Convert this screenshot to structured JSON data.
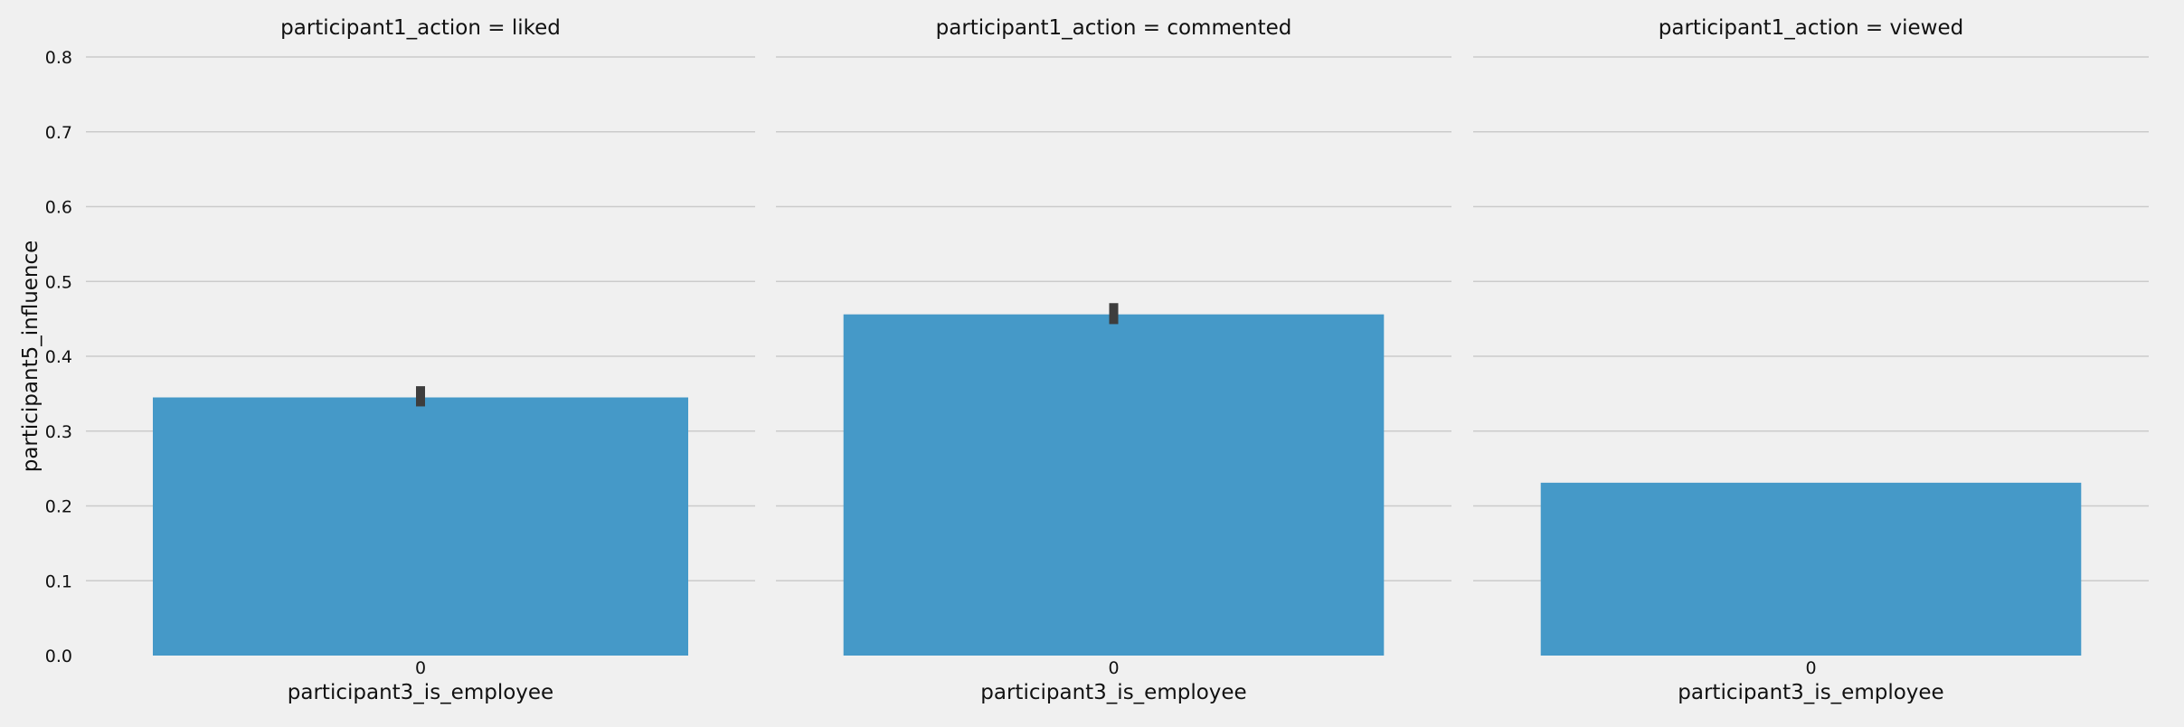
{
  "chart_data": {
    "type": "bar",
    "ylabel": "participant5_influence",
    "ylim": [
      0,
      0.8
    ],
    "yticks": [
      "0.0",
      "0.1",
      "0.2",
      "0.3",
      "0.4",
      "0.5",
      "0.6",
      "0.7",
      "0.8"
    ],
    "bar_color": "#4599c8",
    "error_color": "#3d3d3d",
    "grid": true,
    "panels": [
      {
        "title": "participant1_action = liked",
        "xlabel": "participant3_is_employee",
        "categories": [
          "0"
        ],
        "values": [
          0.345
        ],
        "error_low": [
          0.333
        ],
        "error_high": [
          0.36
        ]
      },
      {
        "title": "participant1_action = commented",
        "xlabel": "participant3_is_employee",
        "categories": [
          "0"
        ],
        "values": [
          0.456
        ],
        "error_low": [
          0.443
        ],
        "error_high": [
          0.471
        ]
      },
      {
        "title": "participant1_action = viewed",
        "xlabel": "participant3_is_employee",
        "categories": [
          "0"
        ],
        "values": [
          0.231
        ],
        "error_low": null,
        "error_high": null
      }
    ]
  }
}
